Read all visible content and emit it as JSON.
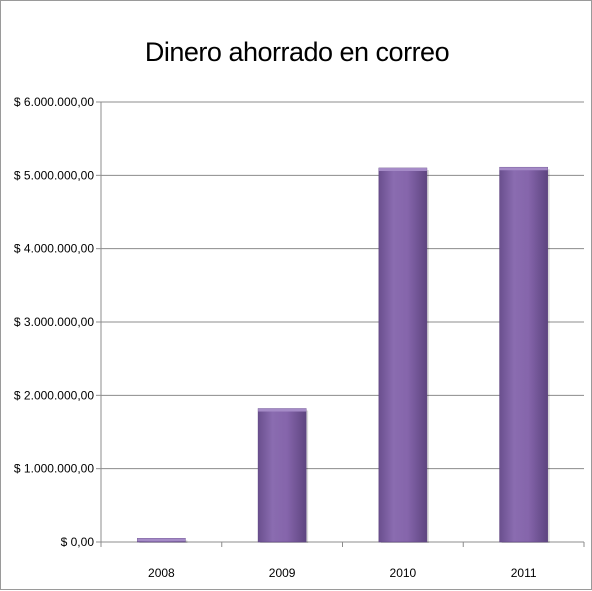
{
  "chart_data": {
    "type": "bar",
    "title": "Dinero ahorrado en correo",
    "xlabel": "",
    "ylabel": "",
    "categories": [
      "2008",
      "2009",
      "2010",
      "2011"
    ],
    "values": [
      50000,
      1820000,
      5100000,
      5110000
    ],
    "ylim": [
      0,
      6000000
    ],
    "yticks": [
      0,
      1000000,
      2000000,
      3000000,
      4000000,
      5000000,
      6000000
    ],
    "ytick_labels": [
      "$ 0,00",
      "$ 1.000.000,00",
      "$ 2.000.000,00",
      "$ 3.000.000,00",
      "$ 4.000.000,00",
      "$ 5.000.000,00",
      "$ 6.000.000,00"
    ],
    "grid": true,
    "legend": "none",
    "bar_color": "#8064a2"
  }
}
